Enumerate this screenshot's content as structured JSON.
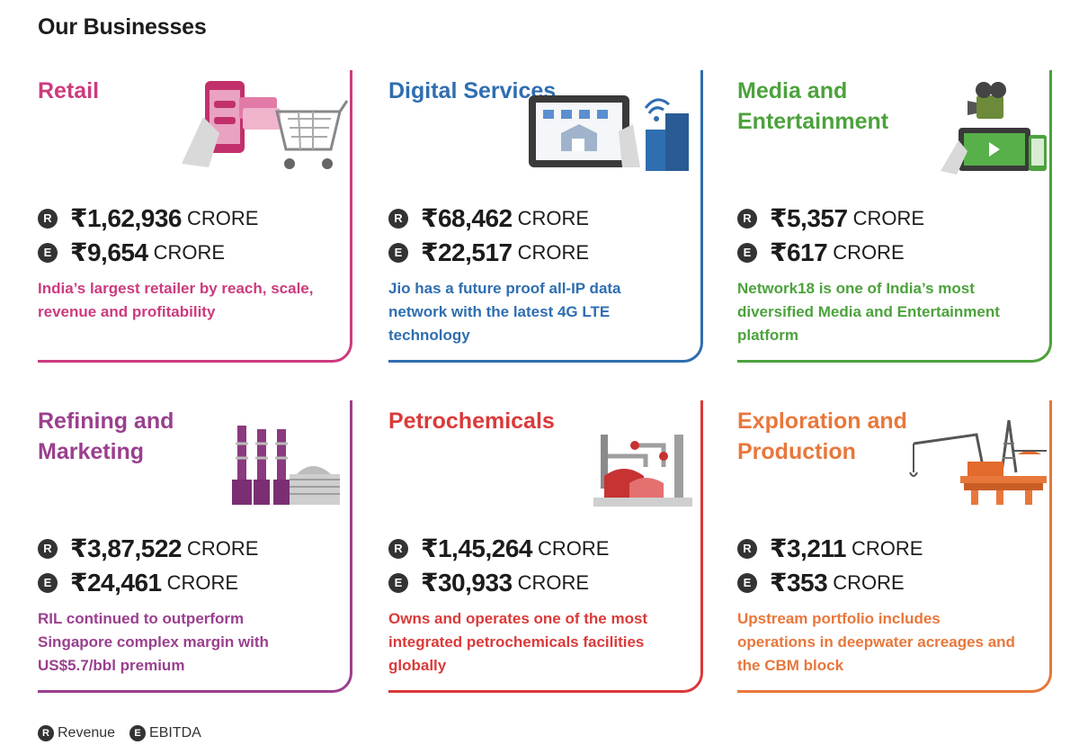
{
  "title": "Our Businesses",
  "colors": {
    "retail": "#cc3b7e",
    "digital": "#2f6eb0",
    "media": "#4ca23c",
    "refining": "#9a3f8e",
    "petro": "#da3a3a",
    "exploration": "#e8773b"
  },
  "businesses": [
    {
      "title": "Retail",
      "icon": "retail-cart-icon",
      "revenue": "₹1,62,936",
      "ebitda": "₹9,654",
      "unit": "CRORE",
      "desc": "India’s largest retailer by reach, scale, revenue and profitability"
    },
    {
      "title": "Digital Services",
      "icon": "digital-tablet-icon",
      "revenue": "₹68,462",
      "ebitda": "₹22,517",
      "unit": "CRORE",
      "desc": "Jio has a future proof all-IP data network with the latest 4G LTE technology"
    },
    {
      "title": "Media and Entertainment",
      "icon": "media-camera-icon",
      "revenue": "₹5,357",
      "ebitda": "₹617",
      "unit": "CRORE",
      "desc": "Network18 is one of India’s most diversified Media and Entertainment platform"
    },
    {
      "title": "Refining and Marketing",
      "icon": "refinery-icon",
      "revenue": "₹3,87,522",
      "ebitda": "₹24,461",
      "unit": "CRORE",
      "desc": "RIL continued to outperform Singapore complex margin with US$5.7/bbl premium"
    },
    {
      "title": "Petrochemicals",
      "icon": "petrochemical-plant-icon",
      "revenue": "₹1,45,264",
      "ebitda": "₹30,933",
      "unit": "CRORE",
      "desc": "Owns and operates one of the most integrated petrochemicals facilities globally"
    },
    {
      "title": "Exploration and Production",
      "icon": "oil-rig-icon",
      "revenue": "₹3,211",
      "ebitda": "₹353",
      "unit": "CRORE",
      "desc": "Upstream portfolio includes operations in deepwater acreages and the CBM block"
    }
  ],
  "badges": {
    "revenue": "R",
    "ebitda": "E"
  },
  "legend": {
    "revenue_label": "Revenue",
    "ebitda_label": "EBITDA"
  }
}
